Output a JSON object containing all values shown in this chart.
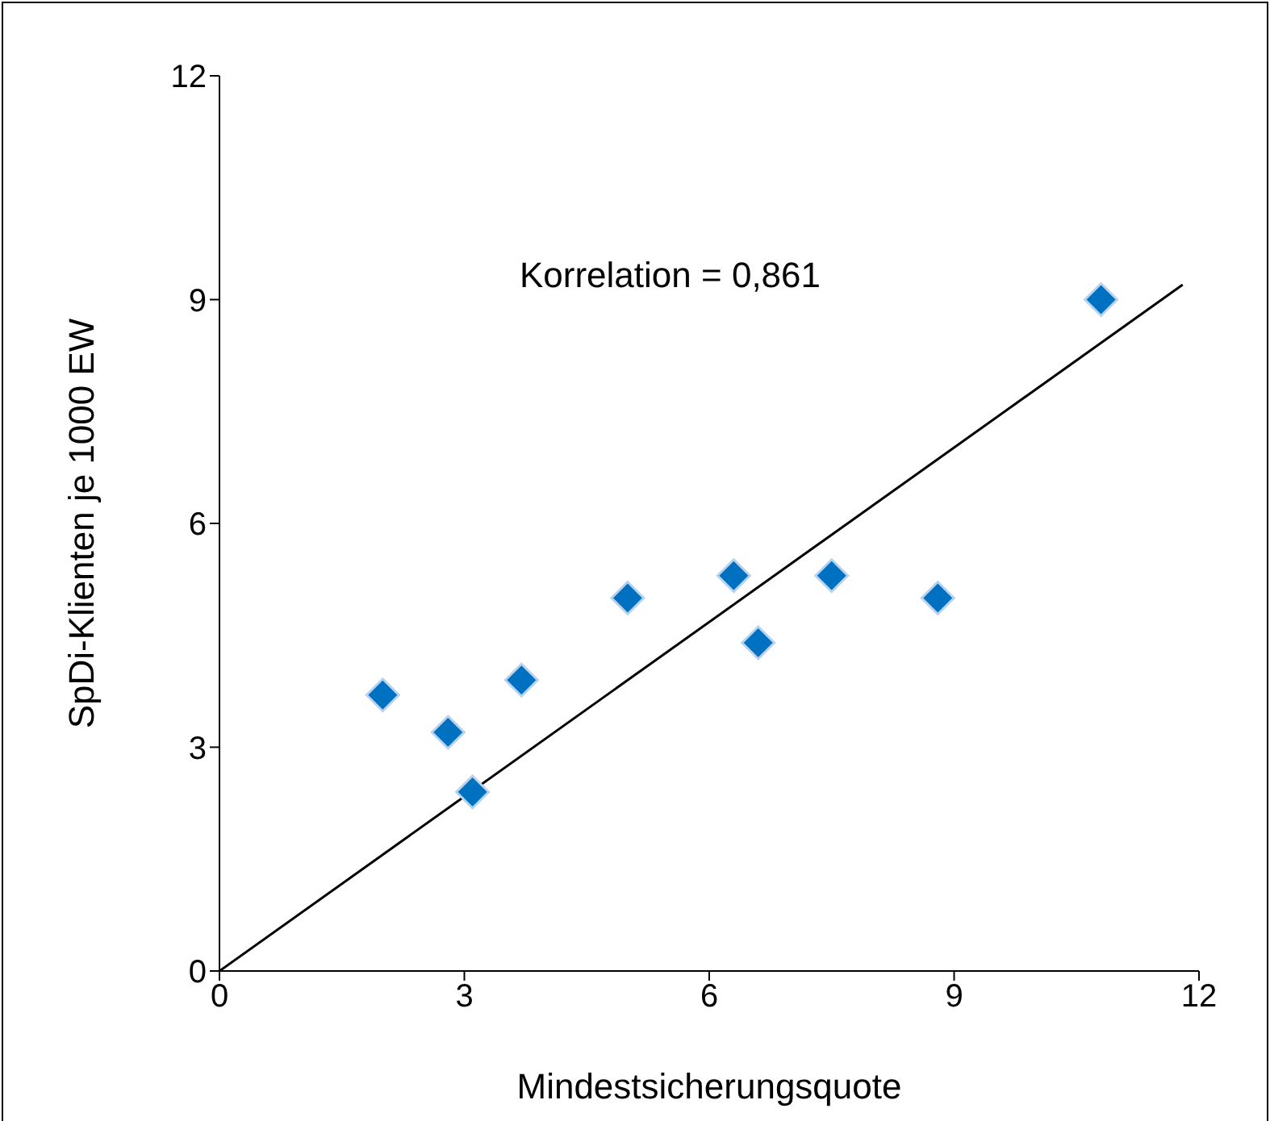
{
  "chart_data": {
    "type": "scatter",
    "xlabel": "Mindestsicherungsquote",
    "ylabel": "SpDi-Klienten je 1000 EW",
    "xlim": [
      0,
      12
    ],
    "ylim": [
      0,
      12
    ],
    "xticks": [
      0,
      3,
      6,
      9,
      12
    ],
    "yticks": [
      0,
      3,
      6,
      9,
      12
    ],
    "grid": false,
    "legend": false,
    "annotations": [
      "Korrelation = 0,861"
    ],
    "series": [
      {
        "marker": "diamond",
        "color": "#0070c0",
        "x": [
          2.0,
          2.8,
          3.1,
          3.7,
          5.0,
          6.3,
          6.6,
          7.5,
          8.8,
          10.8
        ],
        "values": [
          3.7,
          3.2,
          2.4,
          3.9,
          5.0,
          5.3,
          4.4,
          5.3,
          5.0,
          9.0
        ]
      },
      {
        "type": "line",
        "marker": "none",
        "color": "#000000",
        "x": [
          0,
          11.8
        ],
        "values": [
          0,
          9.2
        ]
      }
    ]
  }
}
